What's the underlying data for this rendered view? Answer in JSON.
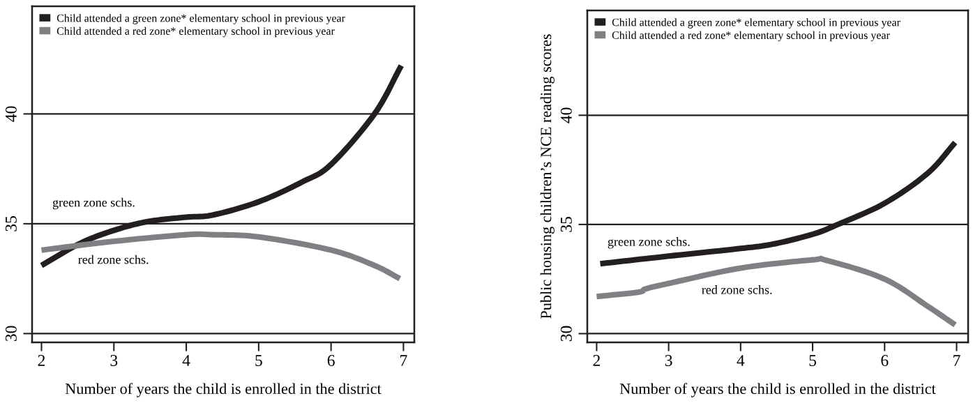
{
  "chart_data": [
    {
      "type": "line",
      "xlabel": "Number of years the child is enrolled in the district",
      "xlim": [
        1.87,
        7.15
      ],
      "ylim": [
        29.6,
        44.9
      ],
      "xticks": [
        2,
        3,
        4,
        5,
        6,
        7
      ],
      "yticks": [
        30,
        35,
        40
      ],
      "grid": "y",
      "legend": "top left",
      "marker": "none",
      "line_style": "solid",
      "annotations": [
        "green zone schs.",
        "red zone schs."
      ],
      "series": [
        {
          "name": "Child attended a green zone* elementary school in previous year",
          "color": "#231f20",
          "x": [
            2,
            2.53,
            3,
            3.47,
            4,
            4.37,
            5,
            5.6,
            6,
            6.6,
            6.97
          ],
          "values": [
            33.1,
            34.1,
            34.7,
            35.1,
            35.3,
            35.4,
            36.0,
            36.9,
            37.7,
            40.0,
            42.2
          ]
        },
        {
          "name": "Child attended a red zone* elementary school in previous year",
          "color": "#808084",
          "x": [
            2,
            3,
            4,
            4.37,
            5,
            6,
            6.6,
            6.95
          ],
          "values": [
            33.8,
            34.2,
            34.5,
            34.5,
            34.4,
            33.8,
            33.1,
            32.5
          ]
        }
      ]
    },
    {
      "type": "line",
      "xlabel": "Number of years the child is enrolled in the district",
      "ylabel": "Public housing children’s NCE reading scores",
      "xlim": [
        1.87,
        7.16
      ],
      "ylim": [
        29.6,
        44.8
      ],
      "xticks": [
        2,
        3,
        4,
        5,
        6,
        7
      ],
      "yticks": [
        30,
        35,
        40
      ],
      "grid": "y",
      "legend": "top left",
      "marker": "none",
      "line_style": "solid",
      "annotations": [
        "green zone schs.",
        "red zone schs."
      ],
      "series": [
        {
          "name": "Child attended a green zone* elementary school in previous year",
          "color": "#231f20",
          "x": [
            2.05,
            3,
            4,
            4.45,
            5,
            5.35,
            6,
            6.6,
            6.98
          ],
          "values": [
            33.2,
            33.55,
            33.9,
            34.1,
            34.55,
            35.0,
            35.97,
            37.35,
            38.75
          ]
        },
        {
          "name": "Child attended a red zone* elementary school in previous year",
          "color": "#808084",
          "x": [
            2,
            2.58,
            2.68,
            3,
            4,
            5,
            5.2,
            6,
            6.6,
            6.98
          ],
          "values": [
            31.7,
            31.9,
            32.05,
            32.3,
            33.0,
            33.38,
            33.35,
            32.5,
            31.25,
            30.4
          ]
        }
      ]
    }
  ]
}
